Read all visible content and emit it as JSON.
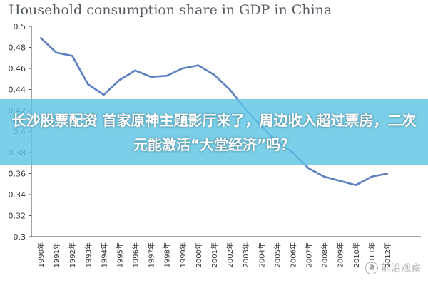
{
  "chart_data": {
    "type": "line",
    "title": "Household consumption share in GDP in China",
    "xlabel": "",
    "ylabel": "",
    "ylim": [
      0.3,
      0.5
    ],
    "yticks": [
      "0.5",
      "0.48",
      "0.46",
      "0.44",
      "0.42",
      "0.4",
      "0.38",
      "0.36",
      "0.34",
      "0.32",
      "0.3"
    ],
    "grid": false,
    "categories": [
      "1990年",
      "1991年",
      "1992年",
      "1993年",
      "1994年",
      "1995年",
      "1996年",
      "1997年",
      "1998年",
      "1999年",
      "2000年",
      "2001年",
      "2002年",
      "2003年",
      "2004年",
      "2005年",
      "2006年",
      "2007年",
      "2008年",
      "2009年",
      "2010年",
      "2011年",
      "2012年"
    ],
    "series": [
      {
        "color": "#5b7fc0",
        "values": [
          0.489,
          0.475,
          0.472,
          0.445,
          0.435,
          0.449,
          0.458,
          0.452,
          0.453,
          0.46,
          0.463,
          0.454,
          0.44,
          0.421,
          0.405,
          0.39,
          0.38,
          0.365,
          0.357,
          0.353,
          0.349,
          0.357,
          0.36
        ]
      }
    ]
  },
  "overlay": {
    "headline": "长沙股票配资 首家原神主题影厅来了，周边收入超过票房，二次元能激活“大堂经济”吗？"
  },
  "watermark": {
    "text": "前沿观察"
  },
  "colors": {
    "line": "#5b7fc0",
    "axis": "#444444",
    "banner": "#5ec4e4"
  }
}
